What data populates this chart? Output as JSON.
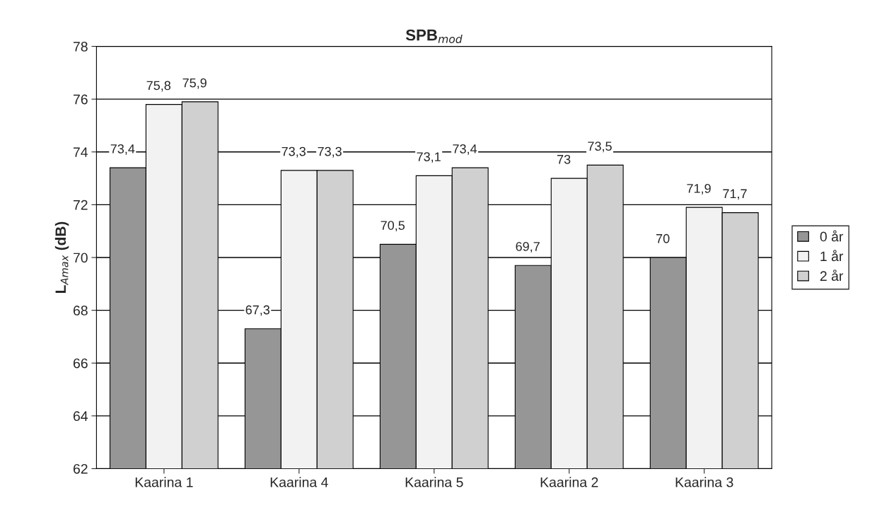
{
  "chart_data": {
    "type": "bar",
    "title": "SPB$_{mod}$",
    "ylabel": "L$_{Amax}$ (dB)",
    "categories": [
      "Kaarina 1",
      "Kaarina 4",
      "Kaarina 5",
      "Kaarina 2",
      "Kaarina 3"
    ],
    "series": [
      {
        "name": "0 år",
        "color": "#969696",
        "values": [
          73.4,
          67.3,
          70.5,
          69.7,
          70
        ],
        "value_labels": [
          "73,4",
          "67,3",
          "70,5",
          "69,7",
          "70"
        ]
      },
      {
        "name": "1 år",
        "color": "#f2f2f2",
        "values": [
          75.8,
          73.3,
          73.1,
          73,
          71.9
        ],
        "value_labels": [
          "75,8",
          "73,3",
          "73,1",
          "73",
          "71,9"
        ]
      },
      {
        "name": "2 år",
        "color": "#d0d0d0",
        "values": [
          75.9,
          73.3,
          73.4,
          73.5,
          71.7
        ],
        "value_labels": [
          "75,9",
          "73,3",
          "73,4",
          "73,5",
          "71,7"
        ]
      }
    ],
    "ylim": [
      62,
      78
    ],
    "yticks": [
      62,
      64,
      66,
      68,
      70,
      72,
      74,
      76,
      78
    ],
    "grid": "y",
    "legend": "right"
  }
}
